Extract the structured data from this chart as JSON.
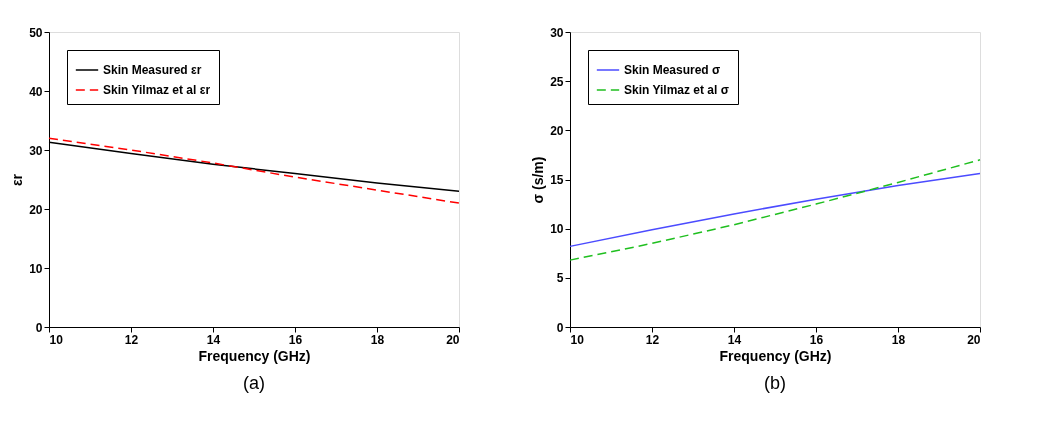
{
  "chart_data": [
    {
      "type": "line",
      "title": "(a)",
      "xlabel": "Frequency (GHz)",
      "ylabel": "εr",
      "x": [
        10,
        12,
        14,
        16,
        18,
        20
      ],
      "series": [
        {
          "name": "Skin Measured εr",
          "color": "#000000",
          "line_style": "solid",
          "values": [
            31.3,
            29.4,
            27.6,
            26.0,
            24.4,
            23.0
          ]
        },
        {
          "name": "Skin Yilmaz et al εr",
          "color": "#ff0000",
          "line_style": "dashed",
          "values": [
            32.0,
            30.0,
            27.8,
            25.4,
            23.2,
            21.0
          ]
        }
      ],
      "xlim": [
        10,
        20
      ],
      "xticks": [
        10,
        12,
        14,
        16,
        18,
        20
      ],
      "ylim": [
        0,
        50
      ],
      "yticks": [
        0,
        10,
        20,
        30,
        40,
        50
      ],
      "grid": false,
      "legend": "top left",
      "marker": "none"
    },
    {
      "type": "line",
      "title": "(b)",
      "xlabel": "Frequency (GHz)",
      "ylabel": "σ (s/m)",
      "x": [
        10,
        12,
        14,
        16,
        18,
        20
      ],
      "series": [
        {
          "name": "Skin Measured σ",
          "color": "#4b4bff",
          "line_style": "solid",
          "values": [
            8.2,
            9.9,
            11.5,
            13.0,
            14.4,
            15.6
          ]
        },
        {
          "name": "Skin Yilmaz et al σ",
          "color": "#1fbf1f",
          "line_style": "dashed",
          "values": [
            6.8,
            8.5,
            10.4,
            12.5,
            14.7,
            17.0
          ]
        }
      ],
      "xlim": [
        10,
        20
      ],
      "xticks": [
        10,
        12,
        14,
        16,
        18,
        20
      ],
      "ylim": [
        0,
        30
      ],
      "yticks": [
        0,
        5,
        10,
        15,
        20,
        25,
        30
      ],
      "grid": false,
      "legend": "top left",
      "marker": "none"
    }
  ]
}
